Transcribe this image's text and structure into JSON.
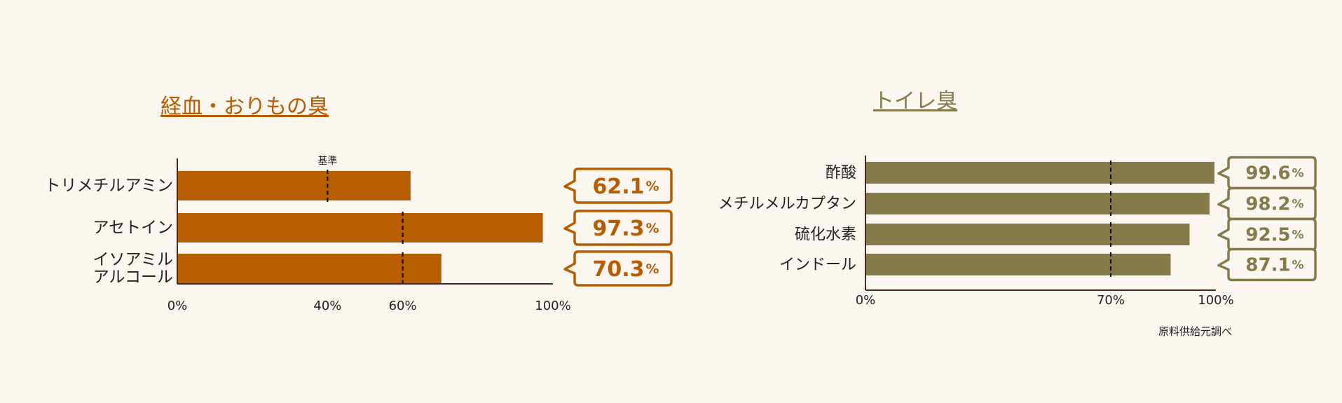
{
  "chart_data": [
    {
      "type": "bar",
      "orientation": "horizontal",
      "title": "経血・おりもの臭",
      "categories": [
        "トリメチルアミン",
        "アセトイン",
        "イソアミル\nアルコール"
      ],
      "values": [
        62.1,
        97.3,
        70.3
      ],
      "value_labels": [
        "62.1%",
        "97.3%",
        "70.3%"
      ],
      "xlim": [
        0,
        100
      ],
      "x_ticks": [
        0,
        40,
        60,
        100
      ],
      "x_tick_labels": [
        "0%",
        "40%",
        "60%",
        "100%"
      ],
      "baselines": [
        40,
        60,
        60
      ],
      "baseline_label": "基準",
      "bar_color": "#b85c00",
      "accent_color": "#b85c00"
    },
    {
      "type": "bar",
      "orientation": "horizontal",
      "title": "トイレ臭",
      "categories": [
        "酢酸",
        "メチルメルカプタン",
        "硫化水素",
        "インドール"
      ],
      "values": [
        99.6,
        98.2,
        92.5,
        87.1
      ],
      "value_labels": [
        "99.6%",
        "98.2%",
        "92.5%",
        "87.1%"
      ],
      "xlim": [
        0,
        100
      ],
      "x_ticks": [
        0,
        70,
        100
      ],
      "x_tick_labels": [
        "0%",
        "70%",
        "100%"
      ],
      "baselines": [
        70,
        70,
        70,
        70
      ],
      "bar_color": "#877a4a",
      "accent_color": "#877a4a"
    }
  ],
  "source_note": "原料供給元調べ"
}
